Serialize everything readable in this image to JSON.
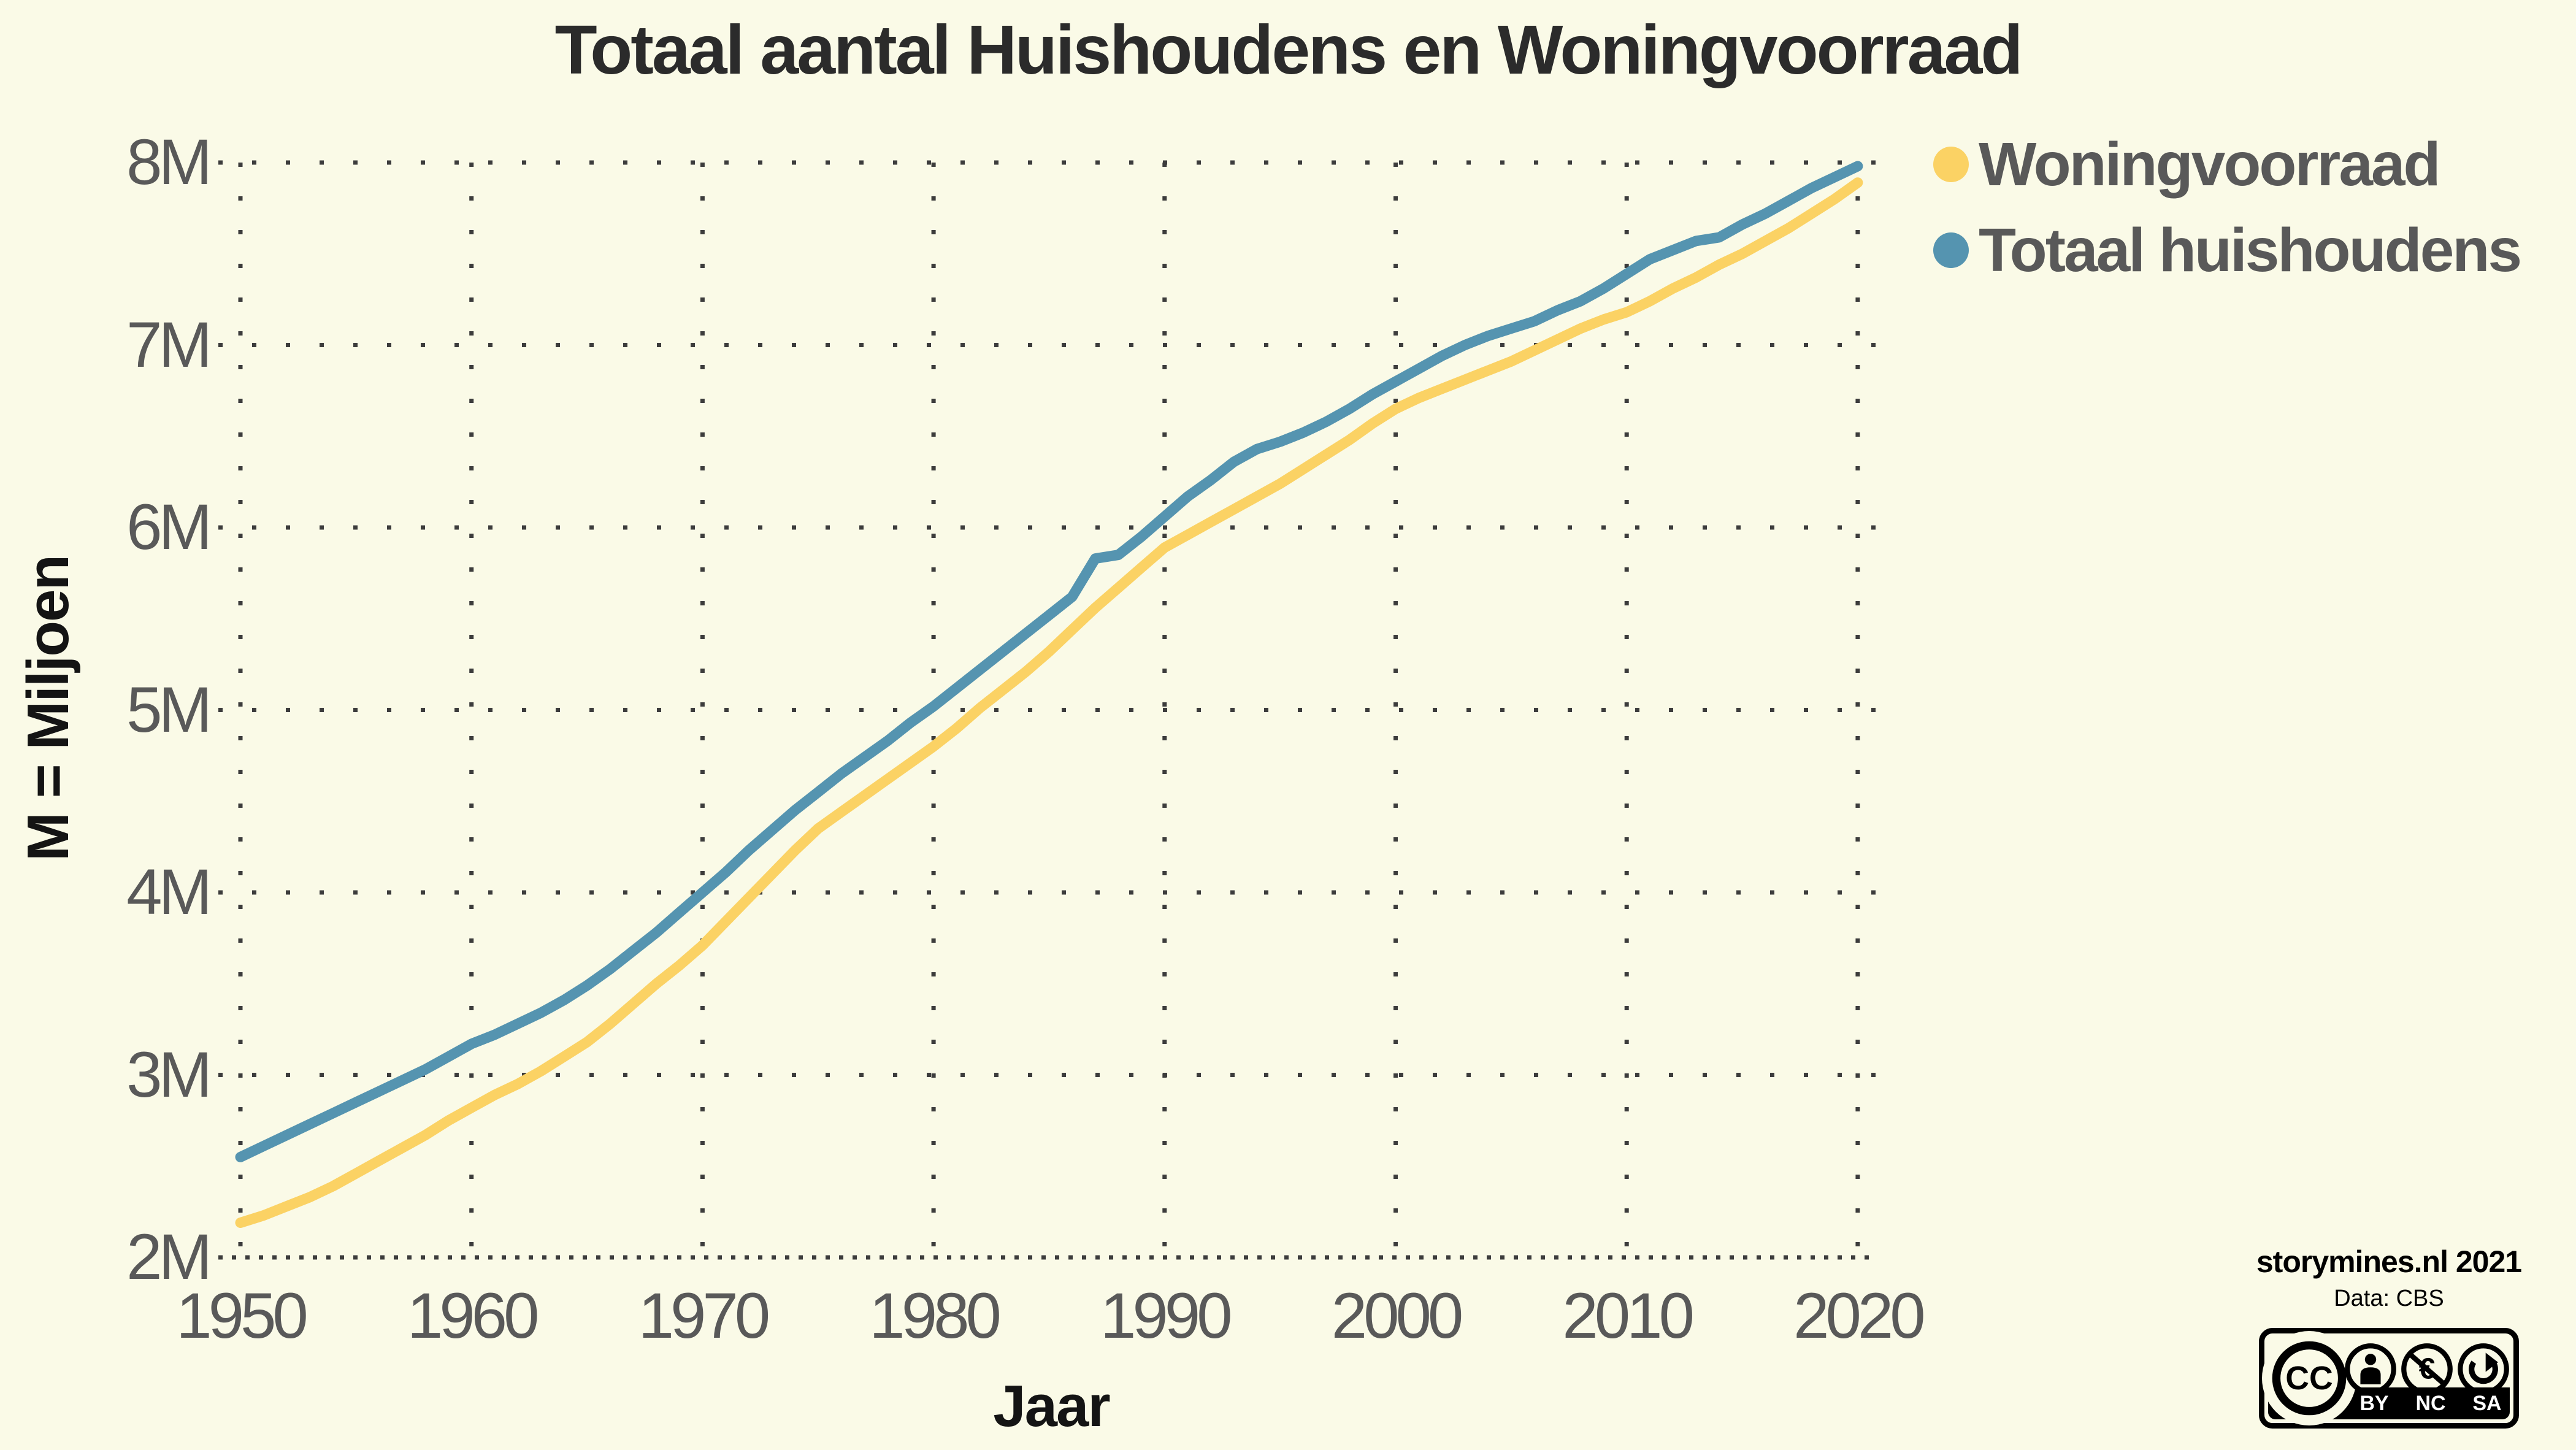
{
  "title": "Totaal aantal Huishoudens en Woningvoorraad",
  "colors": {
    "background": "#FAFAE7",
    "title_text": "#2B2B2B",
    "tick_text": "#595959",
    "axis_title_text": "#141414",
    "grid": "#3C3C3C",
    "woningvoorraad": "#FBD264",
    "huishoudens": "#5594B0"
  },
  "legend": {
    "position": "top-right",
    "items": [
      {
        "label": "Woningvoorraad",
        "color": "#FBD264"
      },
      {
        "label": "Totaal huishoudens",
        "color": "#5594B0"
      }
    ]
  },
  "axes": {
    "x": {
      "title": "Jaar",
      "ticks": [
        1950,
        1960,
        1970,
        1980,
        1990,
        2000,
        2010,
        2020
      ]
    },
    "y": {
      "title": "M = Miljoen",
      "ticks": [
        {
          "label": "2M",
          "value": 2
        },
        {
          "label": "3M",
          "value": 3
        },
        {
          "label": "4M",
          "value": 4
        },
        {
          "label": "5M",
          "value": 5
        },
        {
          "label": "6M",
          "value": 6
        },
        {
          "label": "7M",
          "value": 7
        },
        {
          "label": "8M",
          "value": 8
        }
      ]
    }
  },
  "chart_data": {
    "type": "line",
    "title": "Totaal aantal Huishoudens en Woningvoorraad",
    "xlabel": "Jaar",
    "ylabel": "M = Miljoen",
    "xlim": [
      1950,
      2020
    ],
    "ylim": [
      2,
      8
    ],
    "grid": "dotted",
    "legend_position": "top-right",
    "x": [
      1950,
      1951,
      1952,
      1953,
      1954,
      1955,
      1956,
      1957,
      1958,
      1959,
      1960,
      1961,
      1962,
      1963,
      1964,
      1965,
      1966,
      1967,
      1968,
      1969,
      1970,
      1971,
      1972,
      1973,
      1974,
      1975,
      1976,
      1977,
      1978,
      1979,
      1980,
      1981,
      1982,
      1983,
      1984,
      1985,
      1986,
      1987,
      1988,
      1989,
      1990,
      1991,
      1992,
      1993,
      1994,
      1995,
      1996,
      1997,
      1998,
      1999,
      2000,
      2001,
      2002,
      2003,
      2004,
      2005,
      2006,
      2007,
      2008,
      2009,
      2010,
      2011,
      2012,
      2013,
      2014,
      2015,
      2016,
      2017,
      2018,
      2019,
      2020
    ],
    "series": [
      {
        "name": "Woningvoorraad",
        "color": "#FBD264",
        "values": [
          2.19,
          2.23,
          2.28,
          2.33,
          2.39,
          2.46,
          2.53,
          2.6,
          2.67,
          2.75,
          2.82,
          2.89,
          2.95,
          3.02,
          3.1,
          3.18,
          3.28,
          3.39,
          3.5,
          3.6,
          3.71,
          3.84,
          3.97,
          4.1,
          4.23,
          4.35,
          4.44,
          4.53,
          4.62,
          4.71,
          4.8,
          4.9,
          5.01,
          5.11,
          5.21,
          5.32,
          5.44,
          5.56,
          5.67,
          5.78,
          5.89,
          5.96,
          6.03,
          6.1,
          6.17,
          6.24,
          6.32,
          6.4,
          6.48,
          6.57,
          6.65,
          6.71,
          6.76,
          6.81,
          6.86,
          6.91,
          6.97,
          7.03,
          7.09,
          7.14,
          7.18,
          7.24,
          7.31,
          7.37,
          7.44,
          7.5,
          7.57,
          7.64,
          7.72,
          7.8,
          7.89
        ]
      },
      {
        "name": "Totaal huishoudens",
        "color": "#5594B0",
        "values": [
          2.55,
          2.61,
          2.67,
          2.73,
          2.79,
          2.85,
          2.91,
          2.97,
          3.03,
          3.1,
          3.17,
          3.22,
          3.28,
          3.34,
          3.41,
          3.49,
          3.58,
          3.68,
          3.78,
          3.89,
          4.0,
          4.11,
          4.23,
          4.34,
          4.45,
          4.55,
          4.65,
          4.74,
          4.83,
          4.93,
          5.02,
          5.12,
          5.22,
          5.32,
          5.42,
          5.52,
          5.62,
          5.83,
          5.85,
          5.95,
          6.06,
          6.17,
          6.26,
          6.36,
          6.43,
          6.47,
          6.52,
          6.58,
          6.65,
          6.73,
          6.8,
          6.87,
          6.94,
          7.0,
          7.05,
          7.09,
          7.13,
          7.19,
          7.24,
          7.31,
          7.39,
          7.47,
          7.52,
          7.57,
          7.59,
          7.66,
          7.72,
          7.79,
          7.86,
          7.92,
          7.98
        ]
      }
    ]
  },
  "attribution": {
    "site": "storymines.nl 2021",
    "data_source": "Data: CBS",
    "license": {
      "name": "CC BY-NC-SA",
      "cc_label": "CC",
      "nc_symbol": "€",
      "parts": [
        "BY",
        "NC",
        "SA"
      ]
    }
  }
}
